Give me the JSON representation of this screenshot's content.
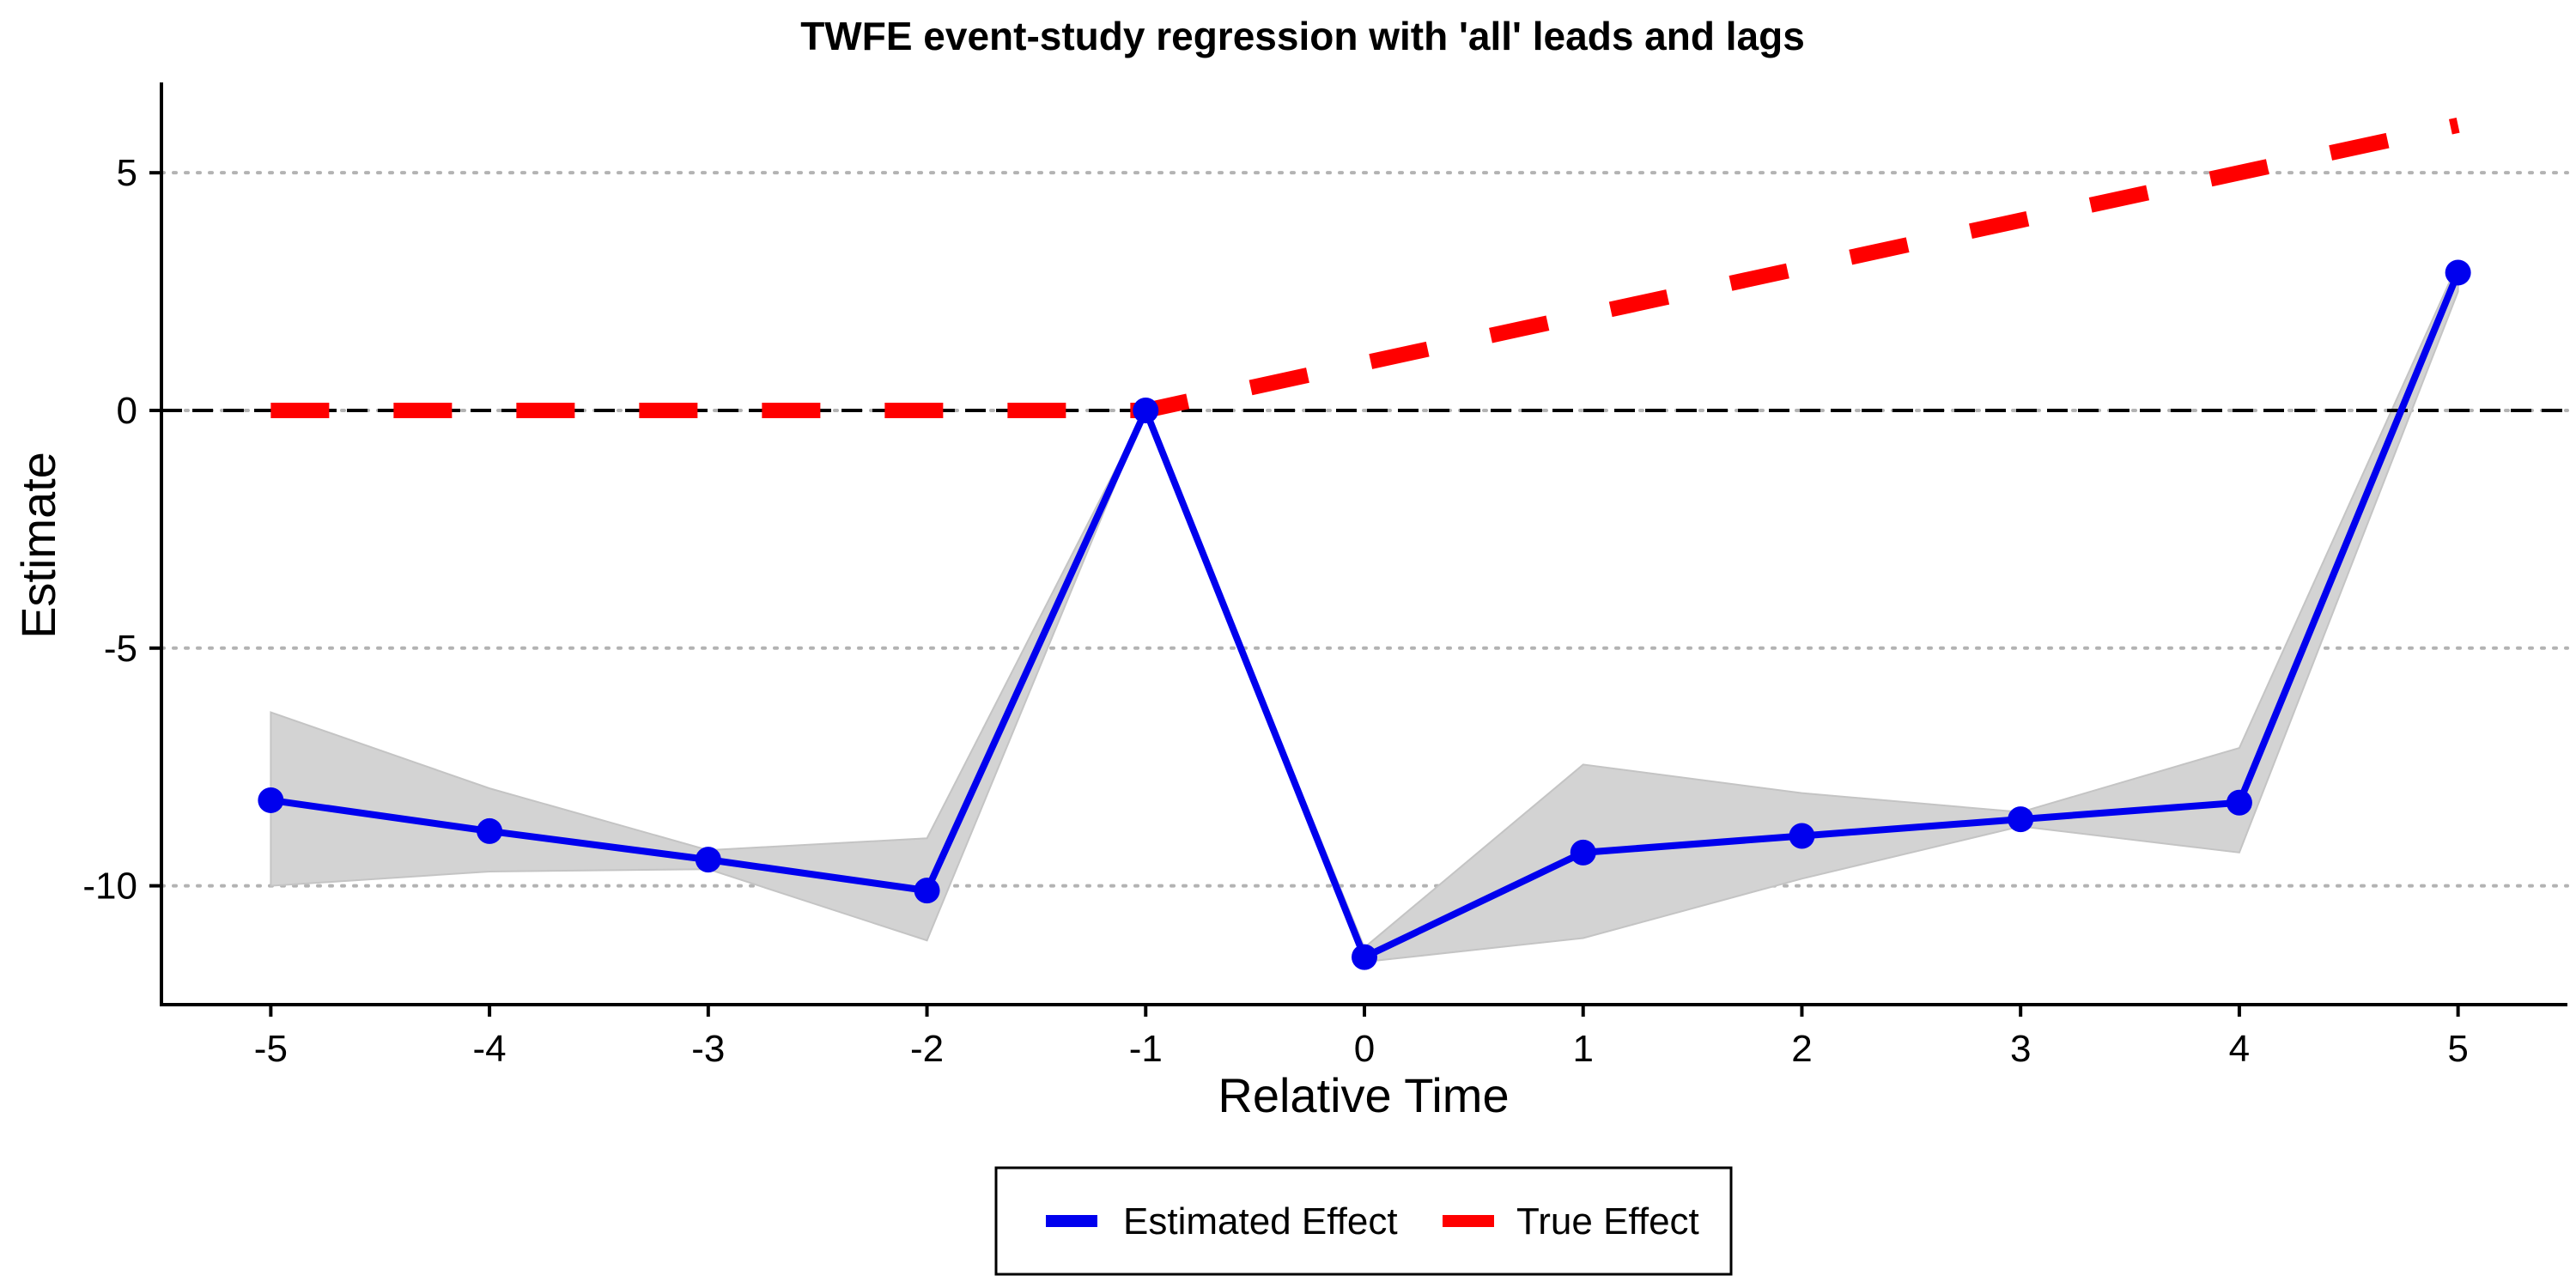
{
  "chart_data": {
    "type": "line",
    "title": "TWFE event-study regression with 'all' leads and lags",
    "xlabel": "Relative Time",
    "ylabel": "Estimate",
    "xlim": [
      -5.5,
      5.5
    ],
    "ylim": [
      -12.5,
      6.9
    ],
    "x_ticks": [
      -5,
      -4,
      -3,
      -2,
      -1,
      0,
      1,
      2,
      3,
      4,
      5
    ],
    "x_tick_labels": [
      "-5",
      "-4",
      "-3",
      "-2",
      "-1",
      "0",
      "1",
      "2",
      "3",
      "4",
      "5"
    ],
    "y_ticks": [
      5,
      0,
      -5,
      -10
    ],
    "y_tick_labels": [
      "5",
      "0",
      "-5",
      "-10"
    ],
    "grid": "horizontal dotted at y ticks",
    "reference_line": {
      "y": 0,
      "style": "dashed",
      "color": "#000000"
    },
    "legend_position": "bottom",
    "series": [
      {
        "name": "Estimated Effect",
        "color": "#0000ee",
        "style": "solid line with points",
        "x": [
          -5,
          -4,
          -3,
          -2,
          -1,
          0,
          1,
          2,
          3,
          4,
          5
        ],
        "values": [
          -8.2,
          -8.85,
          -9.45,
          -10.1,
          0.0,
          -11.5,
          -9.3,
          -8.95,
          -8.6,
          -8.25,
          2.9
        ],
        "ci_lower": [
          -10.0,
          -9.7,
          -9.65,
          -11.15,
          0.0,
          -11.6,
          -11.1,
          -9.85,
          -8.75,
          -9.3,
          2.5
        ],
        "ci_upper": [
          -6.35,
          -7.95,
          -9.25,
          -9.0,
          0.0,
          -11.3,
          -7.45,
          -8.05,
          -8.45,
          -7.1,
          3.1
        ]
      },
      {
        "name": "True Effect",
        "color": "#ff0000",
        "style": "thick dashed line",
        "x": [
          -5,
          -4,
          -3,
          -2,
          -1,
          0,
          1,
          2,
          3,
          4,
          5
        ],
        "values": [
          0,
          0,
          0,
          0,
          0,
          1,
          2,
          3,
          4,
          5,
          6
        ]
      }
    ],
    "ci_band_color": "#d3d3d3"
  }
}
